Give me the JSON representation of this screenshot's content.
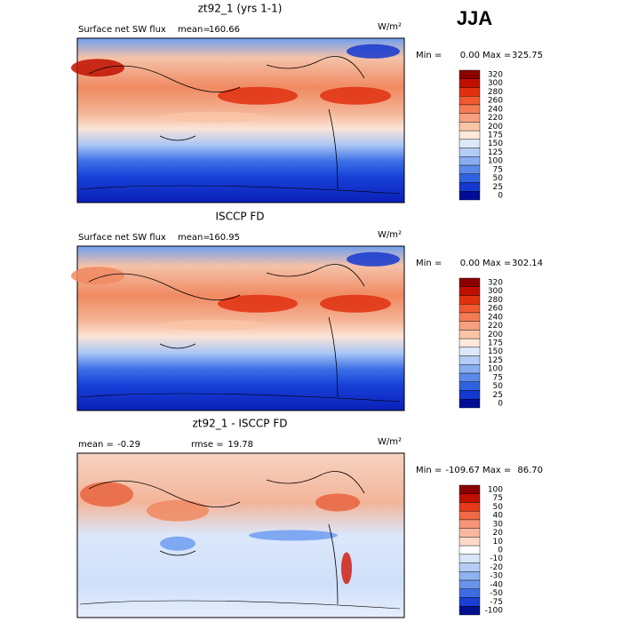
{
  "season": "JJA",
  "panels": [
    {
      "title": "zt92_1 (yrs 1-1)",
      "field": "Surface net SW flux",
      "stats": [
        {
          "label": "mean=",
          "value": "160.66"
        }
      ],
      "units": "W/m²",
      "min_label": "Min =",
      "min": "0.00",
      "max_label": "Max =",
      "max": "325.75",
      "colorbar": [
        "320",
        "300",
        "280",
        "260",
        "240",
        "220",
        "200",
        "175",
        "150",
        "125",
        "100",
        "75",
        "50",
        "25",
        "0"
      ]
    },
    {
      "title": "ISCCP FD",
      "field": "Surface net SW flux",
      "stats": [
        {
          "label": "mean=",
          "value": "160.95"
        }
      ],
      "units": "W/m²",
      "min_label": "Min =",
      "min": "0.00",
      "max_label": "Max =",
      "max": "302.14",
      "colorbar": [
        "320",
        "300",
        "280",
        "260",
        "240",
        "220",
        "200",
        "175",
        "150",
        "125",
        "100",
        "75",
        "50",
        "25",
        "0"
      ]
    },
    {
      "title": "zt92_1 - ISCCP FD",
      "stats": [
        {
          "label": "mean =",
          "value": "-0.29"
        },
        {
          "label": "rmse =",
          "value": "19.78"
        }
      ],
      "units": "W/m²",
      "min_label": "Min =",
      "min": "-109.67",
      "max_label": "Max =",
      "max": "86.70",
      "colorbar": [
        "100",
        "75",
        "50",
        "40",
        "30",
        "20",
        "10",
        "0",
        "-10",
        "-20",
        "-30",
        "-40",
        "-50",
        "-75",
        "-100"
      ]
    }
  ]
}
